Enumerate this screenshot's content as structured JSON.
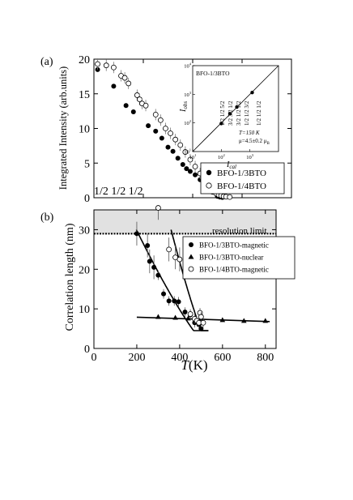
{
  "panel_labels": {
    "a": "(a)",
    "b": "(b)"
  },
  "chart_data": [
    {
      "type": "scatter",
      "panel": "(a)",
      "title": "",
      "xlabel": "",
      "ylabel": "Integrated Intensity (arb.units)",
      "xlim": [
        0,
        800
      ],
      "ylim": [
        0,
        20
      ],
      "y_ticks": [
        "0",
        "5",
        "10",
        "15",
        "20"
      ],
      "grid": false,
      "legend_position": "bottom-right",
      "annotation": "1/2 1/2 1/2",
      "series": [
        {
          "name": "BFO-1/3BTO",
          "marker": "filled-circle",
          "points": [
            [
              15,
              18.5
            ],
            [
              80,
              16.1
            ],
            [
              130,
              13.3
            ],
            [
              160,
              12.4
            ],
            [
              220,
              10.4
            ],
            [
              250,
              9.6
            ],
            [
              275,
              8.6
            ],
            [
              300,
              7.3
            ],
            [
              320,
              6.7
            ],
            [
              340,
              5.7
            ],
            [
              360,
              4.8
            ],
            [
              375,
              4.2
            ],
            [
              390,
              3.8
            ],
            [
              410,
              3.3
            ],
            [
              430,
              2.6
            ],
            [
              450,
              2.1
            ],
            [
              470,
              1.2
            ],
            [
              480,
              0.8
            ],
            [
              500,
              0.2
            ],
            [
              510,
              0.1
            ],
            [
              520,
              0.05
            ]
          ]
        },
        {
          "name": "BFO-1/4BTO",
          "marker": "open-circle",
          "points": [
            [
              15,
              19.3
            ],
            [
              50,
              19.1
            ],
            [
              80,
              18.8
            ],
            [
              110,
              17.6
            ],
            [
              125,
              17.3
            ],
            [
              140,
              16.5
            ],
            [
              175,
              14.8
            ],
            [
              185,
              14.2
            ],
            [
              195,
              13.6
            ],
            [
              210,
              13.3
            ],
            [
              250,
              12.0
            ],
            [
              270,
              11.2
            ],
            [
              290,
              10.0
            ],
            [
              310,
              9.3
            ],
            [
              330,
              8.4
            ],
            [
              350,
              7.6
            ],
            [
              370,
              6.6
            ],
            [
              390,
              5.5
            ],
            [
              410,
              4.5
            ],
            [
              430,
              3.5
            ],
            [
              450,
              2.4
            ],
            [
              465,
              1.8
            ],
            [
              480,
              1.0
            ],
            [
              495,
              0.6
            ],
            [
              505,
              0.4
            ],
            [
              515,
              0.3
            ],
            [
              525,
              0.2
            ],
            [
              535,
              0.15
            ],
            [
              550,
              0.1
            ]
          ]
        }
      ],
      "inset": {
        "title": "BFO-1/3BTO",
        "xlabel": "I",
        "xlabel_sub": "cal",
        "ylabel": "I",
        "ylabel_sub": "obs",
        "x_ticks": [
          "10",
          "10",
          "10"
        ],
        "x_tick_exps": [
          "1",
          "2",
          "3"
        ],
        "y_ticks": [
          "10",
          "10",
          "10",
          "10"
        ],
        "y_tick_exps": [
          "1",
          "2",
          "3",
          "4"
        ],
        "scale": "log",
        "xlim": [
          10,
          10000
        ],
        "ylim": [
          10,
          10000
        ],
        "temperature": "T=150 K",
        "moment": "μ=4.5±0.2 μ",
        "moment_sub": "B",
        "reflections": [
          "1/2 1/2 5/2",
          "3/2 3/2 1/2",
          "3/2 1/2 1/2",
          "1/2 1/2 3/2",
          "1/2 1/2 1/2"
        ],
        "points": [
          [
            100,
            95
          ],
          [
            200,
            210
          ],
          [
            350,
            360
          ],
          [
            1200,
            1150
          ]
        ]
      }
    },
    {
      "type": "scatter",
      "panel": "(b)",
      "title": "",
      "xlabel": "T",
      "xlabel_unit": "(K)",
      "ylabel": "Correlation length (nm)",
      "xlim": [
        0,
        850
      ],
      "ylim": [
        0,
        35
      ],
      "x_ticks": [
        "0",
        "200",
        "400",
        "600",
        "800"
      ],
      "y_ticks": [
        "0",
        "10",
        "20",
        "30"
      ],
      "grid": false,
      "legend_position": "top-right",
      "resolution_limit_label": "resolution limit",
      "resolution_limit_value": 29,
      "series": [
        {
          "name": "BFO-1/3BTO-magnetic",
          "marker": "filled-circle",
          "points": [
            [
              200,
              29.0
            ],
            [
              250,
              26.0
            ],
            [
              260,
              22.0
            ],
            [
              280,
              20.5
            ],
            [
              300,
              18.5
            ],
            [
              325,
              13.8
            ],
            [
              350,
              12.0
            ],
            [
              375,
              12.0
            ],
            [
              395,
              11.8
            ],
            [
              425,
              9.2
            ],
            [
              450,
              8.5
            ],
            [
              470,
              6.5
            ],
            [
              490,
              6.0
            ],
            [
              500,
              5.0
            ]
          ]
        },
        {
          "name": "BFO-1/3BTO-nuclear",
          "marker": "filled-triangle",
          "points": [
            [
              300,
              8.0
            ],
            [
              380,
              7.8
            ],
            [
              440,
              7.6
            ],
            [
              500,
              7.3
            ],
            [
              600,
              7.2
            ],
            [
              700,
              7.0
            ],
            [
              800,
              7.0
            ]
          ]
        },
        {
          "name": "BFO-1/4BTO-magnetic",
          "marker": "open-circle",
          "points": [
            [
              300,
              36.0
            ],
            [
              350,
              25.0
            ],
            [
              380,
              23.0
            ],
            [
              400,
              22.5
            ],
            [
              450,
              8.7
            ],
            [
              470,
              7.5
            ],
            [
              480,
              7.0
            ],
            [
              490,
              6.5
            ],
            [
              495,
              9.0
            ],
            [
              500,
              8.0
            ],
            [
              510,
              6.5
            ]
          ]
        }
      ],
      "fit_lines": [
        {
          "name": "BFO-1/3BTO-magnetic",
          "type": "power-law",
          "Tc": 540,
          "A": 30,
          "x0": 198
        },
        {
          "name": "BFO-1/4BTO-magnetic",
          "type": "power-law",
          "Tc": 540,
          "A": 30,
          "x0": 360
        },
        {
          "name": "BFO-1/3BTO-nuclear",
          "type": "linear",
          "from": [
            200,
            7.9
          ],
          "to": [
            820,
            6.8
          ]
        }
      ]
    }
  ]
}
